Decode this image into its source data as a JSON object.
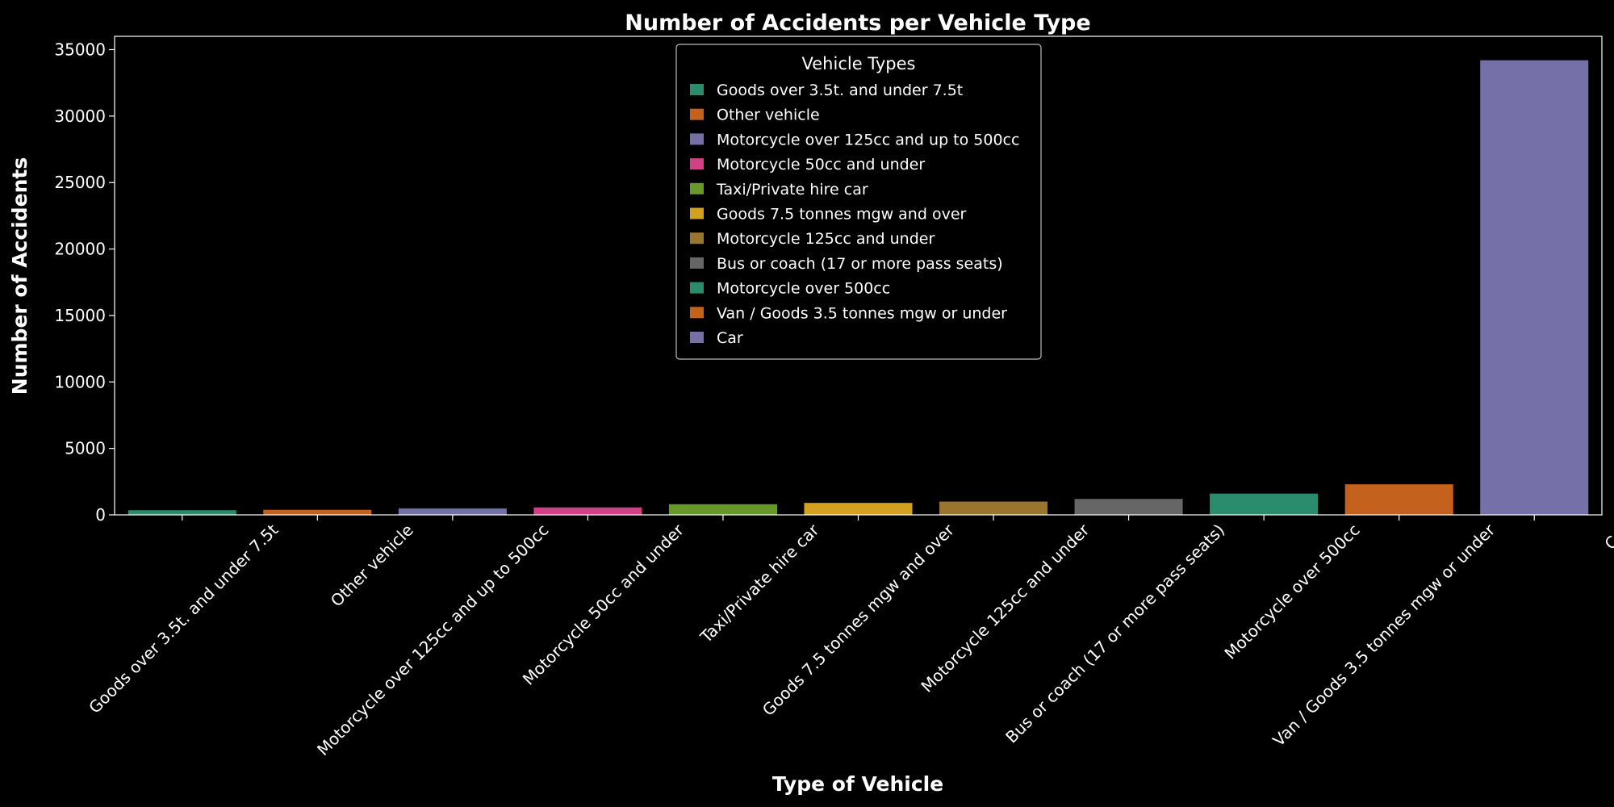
{
  "chart_data": {
    "type": "bar",
    "title": "Number of Accidents per Vehicle Type",
    "xlabel": "Type of Vehicle",
    "ylabel": "Number of Accidents",
    "ylim": [
      0,
      36000
    ],
    "yticks": [
      "0",
      "5000",
      "10000",
      "15000",
      "20000",
      "25000",
      "30000",
      "35000"
    ],
    "grid": false,
    "legend": {
      "title": "Vehicle Types",
      "placement": "top-center"
    },
    "categories": [
      "Goods over 3.5t. and under 7.5t",
      "Other vehicle",
      "Motorcycle over 125cc and up to 500cc",
      "Motorcycle 50cc and under",
      "Taxi/Private hire car",
      "Goods 7.5 tonnes mgw and over",
      "Motorcycle 125cc and under",
      "Bus or coach (17 or more pass seats)",
      "Motorcycle over 500cc",
      "Van / Goods 3.5 tonnes mgw or under",
      "Car"
    ],
    "values": [
      350,
      380,
      480,
      560,
      800,
      900,
      1000,
      1200,
      1600,
      2300,
      34200
    ],
    "colors": [
      "#2a8c6c",
      "#c4621d",
      "#7570a8",
      "#d43f88",
      "#66992a",
      "#d4a020",
      "#9a7530",
      "#666666",
      "#2a8c6c",
      "#c4621d",
      "#7570a8"
    ]
  }
}
